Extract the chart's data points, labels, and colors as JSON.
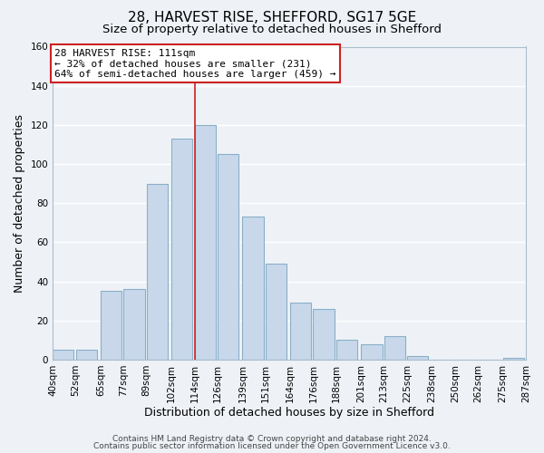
{
  "title": "28, HARVEST RISE, SHEFFORD, SG17 5GE",
  "subtitle": "Size of property relative to detached houses in Shefford",
  "xlabel": "Distribution of detached houses by size in Shefford",
  "ylabel": "Number of detached properties",
  "bar_left_edges": [
    40,
    52,
    65,
    77,
    89,
    102,
    114,
    126,
    139,
    151,
    164,
    176,
    188,
    201,
    213,
    225,
    238,
    250,
    262,
    275
  ],
  "bar_widths": [
    11,
    11,
    11,
    11,
    11,
    11,
    11,
    11,
    11,
    11,
    11,
    11,
    11,
    11,
    11,
    11,
    11,
    11,
    11,
    11
  ],
  "bar_heights": [
    5,
    5,
    35,
    36,
    90,
    113,
    120,
    105,
    73,
    49,
    29,
    26,
    10,
    8,
    12,
    2,
    0,
    0,
    0,
    1
  ],
  "bar_color": "#c8d8ea",
  "bar_edge_color": "#8aafc8",
  "x_tick_labels": [
    "40sqm",
    "52sqm",
    "65sqm",
    "77sqm",
    "89sqm",
    "102sqm",
    "114sqm",
    "126sqm",
    "139sqm",
    "151sqm",
    "164sqm",
    "176sqm",
    "188sqm",
    "201sqm",
    "213sqm",
    "225sqm",
    "238sqm",
    "250sqm",
    "262sqm",
    "275sqm",
    "287sqm"
  ],
  "x_tick_positions": [
    40,
    52,
    65,
    77,
    89,
    102,
    114,
    126,
    139,
    151,
    164,
    176,
    188,
    201,
    213,
    225,
    238,
    250,
    262,
    275,
    287
  ],
  "ylim": [
    0,
    160
  ],
  "yticks": [
    0,
    20,
    40,
    60,
    80,
    100,
    120,
    140,
    160
  ],
  "property_line_x": 114,
  "annotation_title": "28 HARVEST RISE: 111sqm",
  "annotation_line1": "← 32% of detached houses are smaller (231)",
  "annotation_line2": "64% of semi-detached houses are larger (459) →",
  "footer_line1": "Contains HM Land Registry data © Crown copyright and database right 2024.",
  "footer_line2": "Contains public sector information licensed under the Open Government Licence v3.0.",
  "background_color": "#eef2f7",
  "grid_color": "#ffffff",
  "title_fontsize": 11,
  "subtitle_fontsize": 9.5,
  "axis_label_fontsize": 9,
  "tick_label_fontsize": 7.5,
  "annotation_fontsize": 8,
  "footer_fontsize": 6.5
}
